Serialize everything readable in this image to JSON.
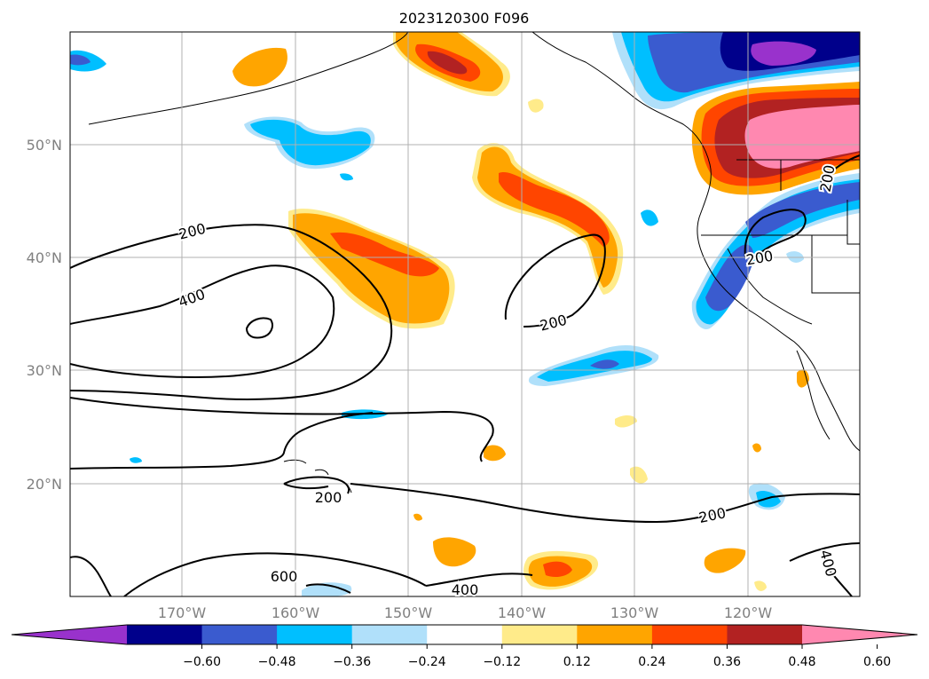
{
  "title": "2023120300 F096",
  "lat_labels": [
    "50°N",
    "40°N",
    "30°N",
    "20°N"
  ],
  "lon_labels": [
    "170°W",
    "160°W",
    "150°W",
    "140°W",
    "130°W",
    "120°W"
  ],
  "contour_labels": [
    "200",
    "400",
    "200",
    "200",
    "200",
    "200",
    "600",
    "400",
    "400",
    "200"
  ],
  "colorbar": {
    "ticks": [
      "−0.60",
      "−0.48",
      "−0.36",
      "−0.24",
      "−0.12",
      "0.12",
      "0.24",
      "0.36",
      "0.48",
      "0.60"
    ],
    "colors": [
      "#9932cc",
      "#00008b",
      "#3a5bcf",
      "#00bfff",
      "#b0e0fa",
      "#ffffff",
      "#ffeb8a",
      "#ffa500",
      "#ff4500",
      "#b22222",
      "#ff88b0"
    ]
  },
  "colors": {
    "grid": "#b0b0b0",
    "contour": "#000000",
    "tick_label": "#808080"
  }
}
